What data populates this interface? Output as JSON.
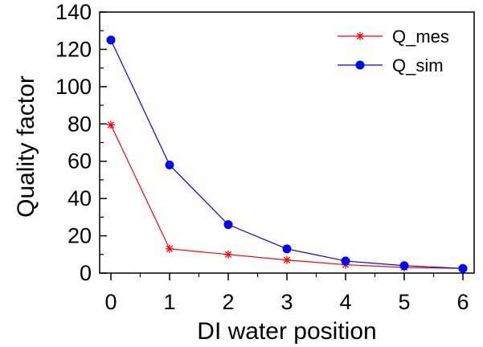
{
  "chart_data": {
    "type": "line",
    "xlabel": "DI water position",
    "ylabel": "Quality factor",
    "xlim": [
      0,
      6
    ],
    "ylim": [
      0,
      140
    ],
    "x_ticks": [
      "0",
      "1",
      "2",
      "3",
      "4",
      "5",
      "6"
    ],
    "y_ticks": [
      "0",
      "20",
      "40",
      "60",
      "80",
      "100",
      "120",
      "140"
    ],
    "grid": false,
    "legend_position": "top-right",
    "x": [
      0,
      1,
      2,
      3,
      4,
      5,
      6
    ],
    "series": [
      {
        "name": "Q_mes",
        "color": "#ff0000",
        "marker": "asterisk",
        "values": [
          79.5,
          13,
          10,
          7,
          4.5,
          3,
          2.5
        ]
      },
      {
        "name": "Q_sim",
        "color": "#0000ff",
        "marker": "circle",
        "values": [
          125,
          58,
          26,
          13,
          6.5,
          4,
          2.5
        ]
      }
    ]
  }
}
